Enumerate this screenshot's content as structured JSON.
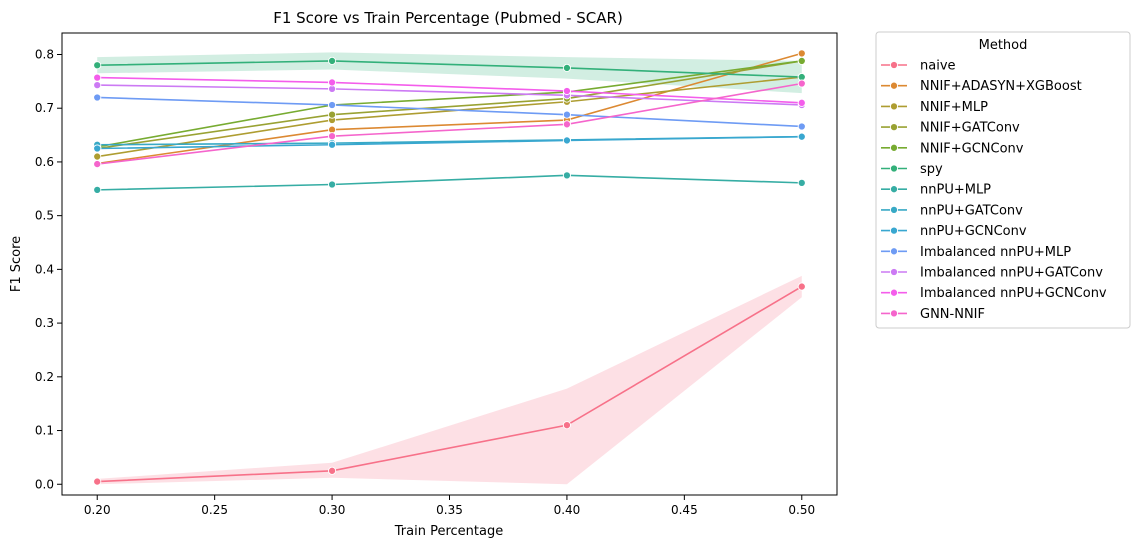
{
  "chart_data": {
    "type": "line",
    "title": "F1 Score vs Train Percentage (Pubmed - SCAR)",
    "xlabel": "Train Percentage",
    "ylabel": "F1 Score",
    "xlim": [
      0.185,
      0.515
    ],
    "ylim": [
      -0.02,
      0.84
    ],
    "xticks": [
      0.2,
      0.25,
      0.3,
      0.35,
      0.4,
      0.45,
      0.5
    ],
    "xtick_labels": [
      "0.20",
      "0.25",
      "0.30",
      "0.35",
      "0.40",
      "0.45",
      "0.50"
    ],
    "yticks": [
      0.0,
      0.1,
      0.2,
      0.3,
      0.4,
      0.5,
      0.6,
      0.7,
      0.8
    ],
    "ytick_labels": [
      "0.0",
      "0.1",
      "0.2",
      "0.3",
      "0.4",
      "0.5",
      "0.6",
      "0.7",
      "0.8"
    ],
    "grid": false,
    "legend": {
      "title": "Method",
      "placement": "outside-upper-right"
    },
    "x": [
      0.2,
      0.3,
      0.4,
      0.5
    ],
    "series": [
      {
        "name": "naive",
        "color": "#f77189",
        "values": [
          0.005,
          0.025,
          0.11,
          0.368
        ],
        "band_low": [
          0.0,
          0.012,
          0.0,
          0.348
        ],
        "band_high": [
          0.01,
          0.04,
          0.178,
          0.388
        ]
      },
      {
        "name": "NNIF+ADASYN+XGBoost",
        "color": "#dc8932",
        "values": [
          0.597,
          0.66,
          0.678,
          0.802
        ]
      },
      {
        "name": "NNIF+MLP",
        "color": "#ae9d31",
        "values": [
          0.61,
          0.678,
          0.712,
          0.758
        ]
      },
      {
        "name": "NNIF+GATConv",
        "color": "#99a233",
        "values": [
          0.625,
          0.688,
          0.718,
          0.788
        ]
      },
      {
        "name": "NNIF+GCNConv",
        "color": "#77ab31",
        "values": [
          0.628,
          0.706,
          0.73,
          0.788
        ]
      },
      {
        "name": "spy",
        "color": "#33b07a",
        "values": [
          0.78,
          0.788,
          0.775,
          0.758
        ],
        "band_low": [
          0.765,
          0.772,
          0.755,
          0.728
        ],
        "band_high": [
          0.795,
          0.804,
          0.795,
          0.788
        ]
      },
      {
        "name": "nnPU+MLP",
        "color": "#36ada4",
        "values": [
          0.548,
          0.558,
          0.575,
          0.561
        ]
      },
      {
        "name": "nnPU+GATConv",
        "color": "#38a9c5",
        "values": [
          0.632,
          0.635,
          0.641,
          0.647
        ]
      },
      {
        "name": "nnPU+GCNConv",
        "color": "#39a7d0",
        "values": [
          0.625,
          0.632,
          0.64,
          0.647
        ]
      },
      {
        "name": "Imbalanced nnPU+MLP",
        "color": "#6e9bf4",
        "values": [
          0.72,
          0.706,
          0.688,
          0.666
        ]
      },
      {
        "name": "Imbalanced nnPU+GATConv",
        "color": "#cc7af4",
        "values": [
          0.743,
          0.736,
          0.724,
          0.706
        ]
      },
      {
        "name": "Imbalanced nnPU+GCNConv",
        "color": "#f45deb",
        "values": [
          0.757,
          0.748,
          0.732,
          0.71
        ]
      },
      {
        "name": "GNN-NNIF",
        "color": "#f565cc",
        "values": [
          0.596,
          0.648,
          0.67,
          0.746
        ]
      }
    ]
  }
}
